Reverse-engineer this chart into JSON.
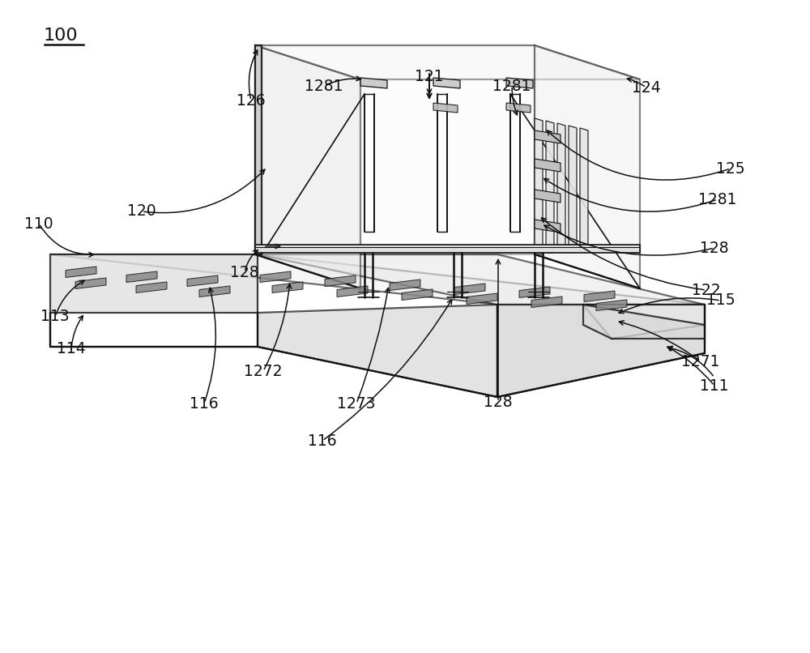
{
  "bg": "#ffffff",
  "lc": "#111111",
  "lw": 1.6,
  "figw": 10.0,
  "figh": 8.06,
  "dpi": 100
}
